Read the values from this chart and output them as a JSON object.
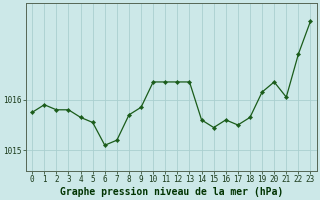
{
  "x": [
    0,
    1,
    2,
    3,
    4,
    5,
    6,
    7,
    8,
    9,
    10,
    11,
    12,
    13,
    14,
    15,
    16,
    17,
    18,
    19,
    20,
    21,
    22,
    23
  ],
  "y": [
    1015.75,
    1015.9,
    1015.8,
    1015.8,
    1015.65,
    1015.55,
    1015.1,
    1015.2,
    1015.7,
    1015.85,
    1016.35,
    1016.35,
    1016.35,
    1016.35,
    1015.6,
    1015.45,
    1015.6,
    1015.5,
    1015.65,
    1016.15,
    1016.35,
    1016.05,
    1016.9,
    1017.55
  ],
  "line_color": "#1a5c1a",
  "marker": "D",
  "marker_size": 2.2,
  "bg_color": "#cce8e8",
  "grid_color": "#aacfcf",
  "xlabel": "Graphe pression niveau de la mer (hPa)",
  "xlabel_color": "#003300",
  "xlabel_fontsize": 7.0,
  "tick_color": "#1a3a1a",
  "tick_fontsize": 5.5,
  "ylabel_ticks": [
    1015,
    1016
  ],
  "ylim": [
    1014.6,
    1017.9
  ],
  "xlim": [
    -0.5,
    23.5
  ],
  "spine_color": "#556655"
}
